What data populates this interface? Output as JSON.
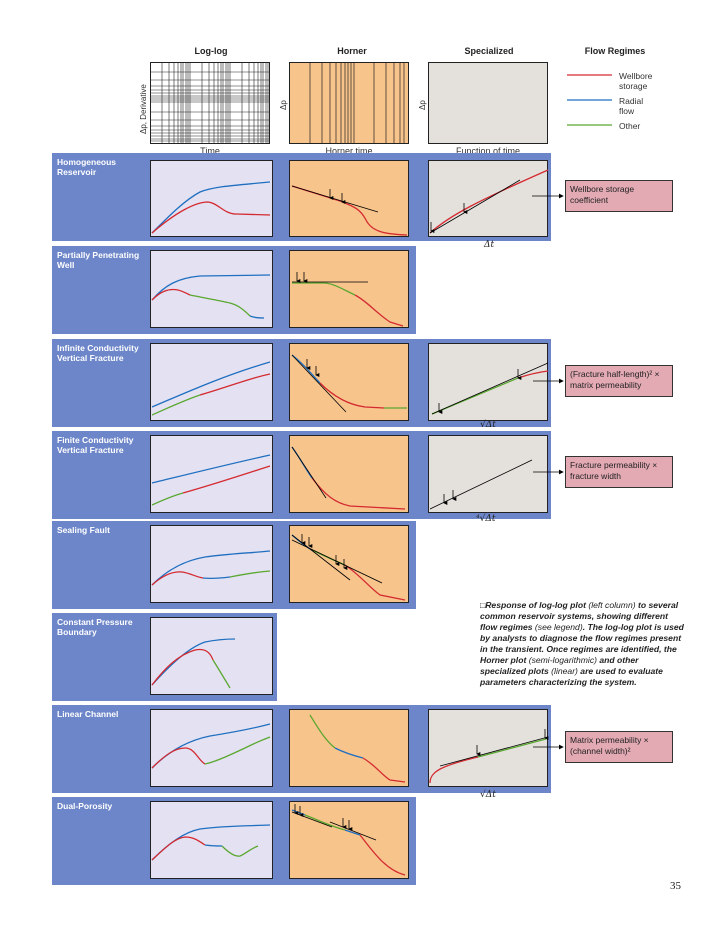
{
  "header": {
    "columns": [
      "Log-log",
      "Horner",
      "Specialized",
      "Flow Regimes"
    ],
    "x_axes": [
      "Time",
      "Horner time",
      "Function of time"
    ],
    "y_axes": [
      "Δp, Derivative",
      "Δp",
      "Δp"
    ]
  },
  "legend": [
    {
      "label": "Wellbore storage",
      "color": "#d42a30"
    },
    {
      "label": "Radial flow",
      "color": "#1f6fc0"
    },
    {
      "label": "Other",
      "color": "#5aa830"
    }
  ],
  "rows": [
    {
      "label": "Homogeneous Reservoir"
    },
    {
      "label": "Partially Penetrating Well"
    },
    {
      "label": "Infinite Conductivity Vertical Fracture"
    },
    {
      "label": "Finite Conductivity Vertical Fracture"
    },
    {
      "label": "Sealing Fault"
    },
    {
      "label": "Constant Pressure Boundary"
    },
    {
      "label": "Linear Channel"
    },
    {
      "label": "Dual-Porosity"
    }
  ],
  "annotations": [
    {
      "text": "Wellbore storage coefficient"
    },
    {
      "text": "(Fracture half-length)² × matrix permeability"
    },
    {
      "text": "Fracture permeability × fracture width"
    },
    {
      "text": "Matrix permeability × (channel width)²"
    }
  ],
  "specialized_labels": [
    "Δt",
    "√Δt",
    "⁴√Δt",
    "√Δt"
  ],
  "caption": {
    "marker": "□",
    "p1": "Response of log-log plot ",
    "p2": "(left column)",
    "p3": " to several common reservoir systems, showing different flow regimes ",
    "p4": "(see legend)",
    "p5": ". The log-log plot is used by analysts to diagnose the flow regimes present in the transient. Once regimes are identified, the Horner plot ",
    "p6": "(semi-logarithmic)",
    "p7": " and other specialized plots ",
    "p8": "(linear)",
    "p9": " are used to evaluate parameters characterizing the system."
  },
  "page_number": "35"
}
